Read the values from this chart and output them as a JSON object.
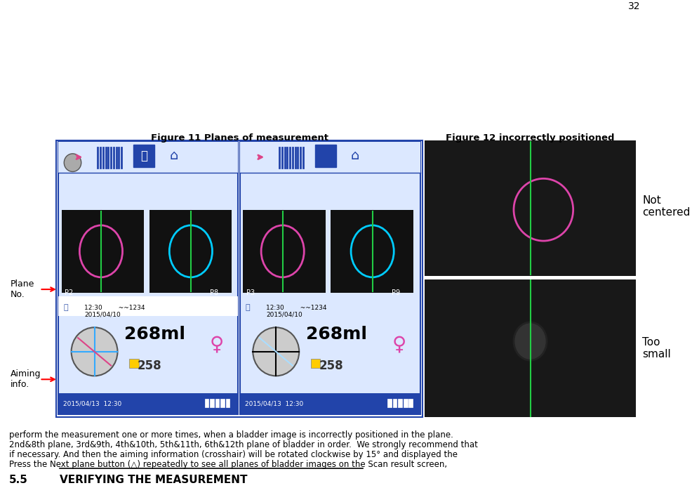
{
  "page_num": "32",
  "section_num": "5.5",
  "section_title": "VERIFYING THE MEASUREMENT",
  "paragraph": "Press the Next plane button (△) repeatedly to see all planes of bladder images on the Scan result screen, if necessary. And then the aiming information (crosshair) will be rotated clockwise by 15° and displayed the 2ⁿᵈ&8ᵗʰ plane, 3ʳᵈ&9ᵗʰ, 4ᵗʰ&10ᵗʰ, 5ᵗʰ&11ᵗʰ, 6ᵗʰ&12ᵗʰ plane of bladder in order. We strongly recommend that perform the measurement one or more times, when a bladder image is incorrectly positioned in the plane.",
  "fig11_caption": "Figure 11 Planes of measurement",
  "fig12_caption": "Figure 12 incorrectly positioned",
  "aiming_label": "Aiming\ninfo.",
  "plane_label": "Plane\nNo.",
  "too_small_label": "Too\nsmall",
  "not_centered_label": "Not\ncentered",
  "bg_color": "#ffffff",
  "text_color": "#000000",
  "title_color": "#000000",
  "fig_border_color": "#1a3a8c",
  "fig_bg_color": "#e8f0ff"
}
